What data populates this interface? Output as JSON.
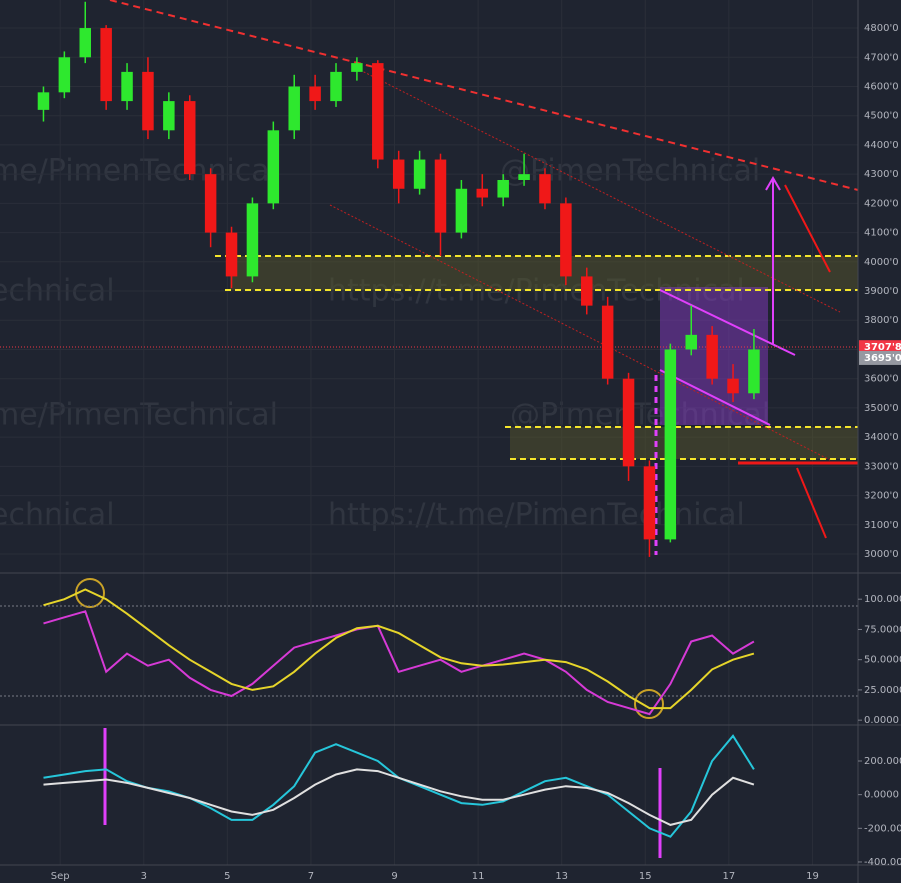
{
  "chart_data": {
    "type": "candlestick",
    "x": [
      0.6,
      1.1,
      1.6,
      2.1,
      2.6,
      3.1,
      3.6,
      4.1,
      4.6,
      5.1,
      5.6,
      6.1,
      6.6,
      7.1,
      7.6,
      8.1,
      8.6,
      9.1,
      9.6,
      10.1,
      10.6,
      11.1,
      11.6,
      12.1,
      12.6,
      13.1,
      13.6,
      14.1,
      14.6,
      15.1,
      15.6,
      16.1,
      16.6,
      17.1,
      17.6
    ],
    "open": [
      4520,
      4580,
      4700,
      4800,
      4550,
      4650,
      4450,
      4550,
      4300,
      4100,
      3950,
      4200,
      4450,
      4600,
      4550,
      4650,
      4680,
      4350,
      4250,
      4350,
      4100,
      4250,
      4220,
      4280,
      4300,
      4200,
      3950,
      3850,
      3600,
      3300,
      3050,
      3700,
      3750,
      3600,
      3550
    ],
    "high": [
      4600,
      4720,
      4890,
      4810,
      4680,
      4700,
      4580,
      4570,
      4320,
      4120,
      4220,
      4480,
      4640,
      4640,
      4680,
      4700,
      4690,
      4380,
      4380,
      4370,
      4280,
      4300,
      4300,
      4370,
      4320,
      4220,
      3980,
      3880,
      3620,
      3320,
      3720,
      3850,
      3780,
      3650,
      3770
    ],
    "low": [
      4480,
      4560,
      4680,
      4520,
      4520,
      4420,
      4420,
      4280,
      4050,
      3910,
      3930,
      4180,
      4420,
      4520,
      4530,
      4620,
      4320,
      4200,
      4230,
      4020,
      4080,
      4190,
      4190,
      4260,
      4180,
      3920,
      3820,
      3580,
      3250,
      2990,
      3040,
      3680,
      3580,
      3520,
      3530
    ],
    "close": [
      4580,
      4700,
      4800,
      4550,
      4650,
      4450,
      4550,
      4300,
      4100,
      3950,
      4200,
      4450,
      4600,
      4550,
      4650,
      4680,
      4350,
      4250,
      4350,
      4100,
      4250,
      4220,
      4280,
      4300,
      4200,
      3950,
      3850,
      3600,
      3300,
      3050,
      3700,
      3750,
      3600,
      3550,
      3700
    ],
    "up_color": "#2ee82e",
    "down_color": "#f01818",
    "xlim": [
      -0.44,
      20.09
    ],
    "xticks": [
      {
        "value": 1,
        "label": "Sep"
      },
      3,
      5,
      7,
      9,
      11,
      13,
      15,
      17,
      19
    ],
    "ylim": [
      2935,
      4896
    ],
    "yticks": [
      {
        "value": 3000,
        "label": "3000'0"
      },
      {
        "value": 3100,
        "label": "3100'0"
      },
      {
        "value": 3200,
        "label": "3200'0"
      },
      {
        "value": 3300,
        "label": "3300'0"
      },
      {
        "value": 3400,
        "label": "3400'0"
      },
      {
        "value": 3500,
        "label": "3500'0"
      },
      {
        "value": 3600,
        "label": "3600'0"
      },
      {
        "value": 3700,
        "label": "3700'0"
      },
      {
        "value": 3800,
        "label": "3800'0"
      },
      {
        "value": 3900,
        "label": "3900'0"
      },
      {
        "value": 4000,
        "label": "4000'0"
      },
      {
        "value": 4100,
        "label": "4100'0"
      },
      {
        "value": 4200,
        "label": "4200'0"
      },
      {
        "value": 4300,
        "label": "4300'0"
      },
      {
        "value": 4400,
        "label": "4400'0"
      },
      {
        "value": 4500,
        "label": "4500'0"
      },
      {
        "value": 4600,
        "label": "4600'0"
      },
      {
        "value": 4700,
        "label": "4700'0"
      },
      {
        "value": 4800,
        "label": "4800'0"
      }
    ],
    "grid": true,
    "price_tags": [
      {
        "value": 3707.8,
        "label": "3707'8",
        "color": "#f23645"
      },
      {
        "value": 3695.0,
        "label": "3695'0",
        "color": "#9598a1"
      }
    ],
    "watermarks": [
      "me/PimenTechnical",
      "@PimenTechnical",
      "echnical",
      "https://t.me/PimenTechnical",
      "me/PimenTechnical",
      "@PimenTechnical",
      "echnical",
      "https://t.me/PimenTechnical"
    ],
    "indicators": [
      {
        "type": "line",
        "ylim": [
          -4,
          120
        ],
        "yticks": [
          {
            "value": 0,
            "label": "0.0000"
          },
          {
            "value": 25,
            "label": "25.0000"
          },
          {
            "value": 50,
            "label": "50.0000"
          },
          {
            "value": 75,
            "label": "75.0000"
          },
          {
            "value": 100,
            "label": "100.000"
          }
        ],
        "series": [
          {
            "color": "#d63ad6",
            "values": [
              80,
              85,
              90,
              40,
              55,
              45,
              50,
              35,
              25,
              20,
              30,
              45,
              60,
              65,
              70,
              75,
              78,
              40,
              45,
              50,
              40,
              45,
              50,
              55,
              50,
              40,
              25,
              15,
              10,
              5,
              30,
              65,
              70,
              55,
              65
            ]
          },
          {
            "color": "#e6d52a",
            "values": [
              95,
              100,
              108,
              100,
              88,
              75,
              62,
              50,
              40,
              30,
              25,
              28,
              40,
              55,
              68,
              76,
              78,
              72,
              62,
              52,
              47,
              45,
              46,
              48,
              50,
              48,
              42,
              32,
              20,
              10,
              10,
              25,
              42,
              50,
              55
            ]
          }
        ]
      },
      {
        "type": "line",
        "ylim": [
          -418,
          408
        ],
        "yticks": [
          {
            "value": -400,
            "label": "-400.000"
          },
          {
            "value": -200,
            "label": "-200.000"
          },
          {
            "value": 0,
            "label": "0.0000"
          },
          {
            "value": 200,
            "label": "200.000"
          }
        ],
        "series": [
          {
            "color": "#26c6da",
            "values": [
              100,
              120,
              140,
              150,
              80,
              40,
              20,
              -20,
              -80,
              -150,
              -150,
              -60,
              50,
              250,
              300,
              250,
              200,
              100,
              50,
              0,
              -50,
              -60,
              -40,
              20,
              80,
              100,
              50,
              0,
              -100,
              -200,
              -250,
              -100,
              200,
              350,
              150
            ]
          },
          {
            "color": "#e0e0e0",
            "values": [
              60,
              70,
              80,
              90,
              70,
              40,
              10,
              -20,
              -60,
              -100,
              -120,
              -90,
              -20,
              60,
              120,
              150,
              140,
              100,
              60,
              20,
              -10,
              -30,
              -30,
              0,
              30,
              50,
              40,
              10,
              -50,
              -120,
              -180,
              -150,
              0,
              100,
              60
            ]
          }
        ]
      }
    ]
  }
}
